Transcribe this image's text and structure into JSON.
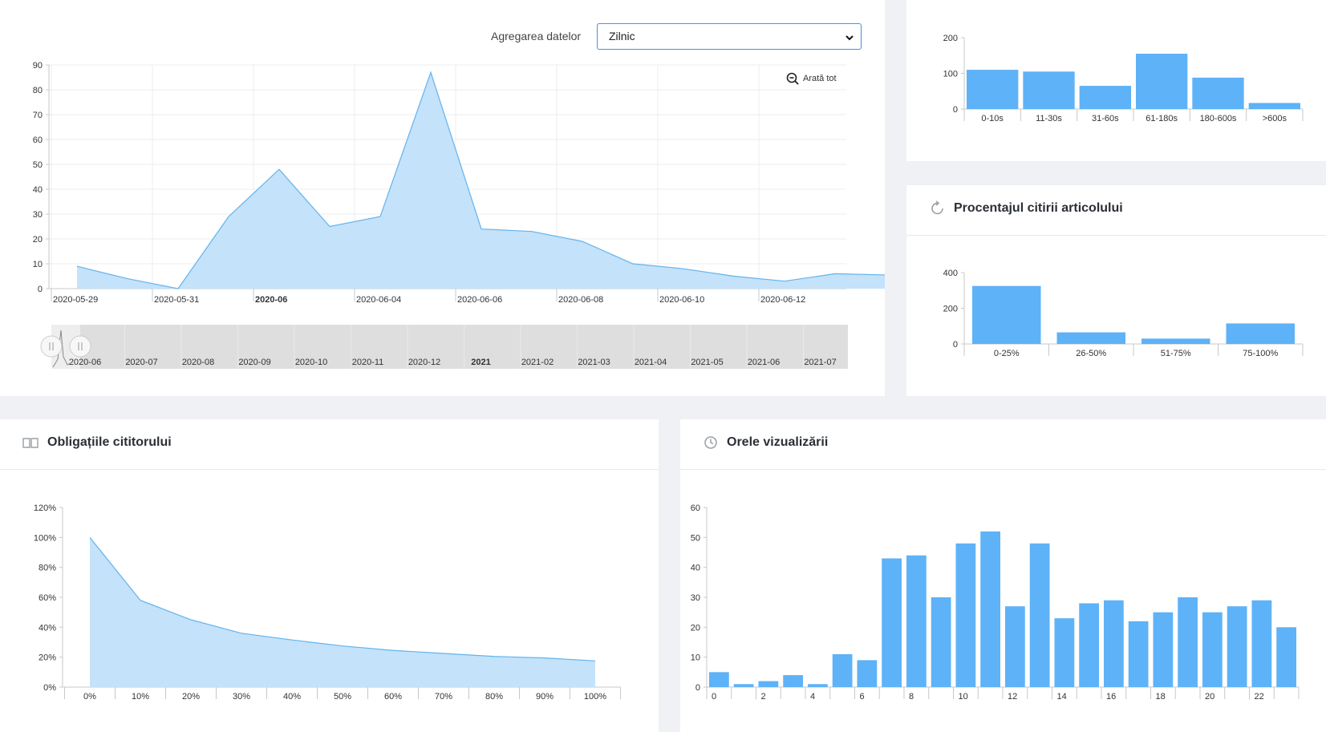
{
  "timeline": {
    "aggregation_label": "Agregarea datelor",
    "aggregation_value": "Zilnic",
    "show_all_label": "Arată tot",
    "chart_data": {
      "type": "area",
      "ylim": [
        0,
        90
      ],
      "y_ticks": [
        0,
        10,
        20,
        30,
        40,
        50,
        60,
        70,
        80,
        90
      ],
      "x_labels": [
        {
          "label": "2020-05-29",
          "bold": false
        },
        {
          "label": "2020-05-31",
          "bold": false
        },
        {
          "label": "2020-06",
          "bold": true
        },
        {
          "label": "2020-06-04",
          "bold": false
        },
        {
          "label": "2020-06-06",
          "bold": false
        },
        {
          "label": "2020-06-08",
          "bold": false
        },
        {
          "label": "2020-06-10",
          "bold": false
        },
        {
          "label": "2020-06-12",
          "bold": false
        }
      ],
      "x": [
        "2020-05-29",
        "2020-05-30",
        "2020-05-31",
        "2020-06-01",
        "2020-06-02",
        "2020-06-03",
        "2020-06-04",
        "2020-06-05",
        "2020-06-06",
        "2020-06-07",
        "2020-06-08",
        "2020-06-09",
        "2020-06-10",
        "2020-06-11",
        "2020-06-12",
        "2020-06-13",
        "2020-06-13T12"
      ],
      "values": [
        9,
        4,
        0,
        29,
        48,
        25,
        29,
        87,
        24,
        23,
        19,
        10,
        8,
        5,
        3,
        6,
        5.5
      ],
      "grid": true
    },
    "navigator": {
      "labels": [
        {
          "label": "2020-06",
          "bold": false
        },
        {
          "label": "2020-07",
          "bold": false
        },
        {
          "label": "2020-08",
          "bold": false
        },
        {
          "label": "2020-09",
          "bold": false
        },
        {
          "label": "2020-10",
          "bold": false
        },
        {
          "label": "2020-11",
          "bold": false
        },
        {
          "label": "2020-12",
          "bold": false
        },
        {
          "label": "2021",
          "bold": true
        },
        {
          "label": "2021-02",
          "bold": false
        },
        {
          "label": "2021-03",
          "bold": false
        },
        {
          "label": "2021-04",
          "bold": false
        },
        {
          "label": "2021-05",
          "bold": false
        },
        {
          "label": "2021-06",
          "bold": false
        },
        {
          "label": "2021-07",
          "bold": false
        }
      ]
    }
  },
  "duration": {
    "chart_data": {
      "type": "bar",
      "categories": [
        "0-10s",
        "11-30s",
        "31-60s",
        "61-180s",
        "180-600s",
        ">600s"
      ],
      "values": [
        110,
        105,
        65,
        155,
        88,
        17
      ],
      "ylim": [
        0,
        200
      ],
      "y_ticks": [
        0,
        100,
        200
      ]
    }
  },
  "percent": {
    "title": "Procentajul citirii articolului",
    "icon": "refresh-icon",
    "chart_data": {
      "type": "bar",
      "categories": [
        "0-25%",
        "26-50%",
        "51-75%",
        "75-100%"
      ],
      "values": [
        325,
        65,
        30,
        115
      ],
      "ylim": [
        0,
        400
      ],
      "y_ticks": [
        0,
        200,
        400
      ]
    }
  },
  "obligations": {
    "title": "Obligațiile cititorului",
    "icon": "book-icon",
    "chart_data": {
      "type": "area",
      "x": [
        "0%",
        "10%",
        "20%",
        "30%",
        "40%",
        "50%",
        "60%",
        "70%",
        "80%",
        "90%",
        "100%"
      ],
      "values": [
        100,
        58,
        45,
        36,
        31.5,
        27.5,
        24.5,
        22.5,
        20.5,
        19.5,
        17.5
      ],
      "ylim": [
        0,
        120
      ],
      "y_ticks": [
        "0%",
        "20%",
        "40%",
        "60%",
        "80%",
        "100%",
        "120%"
      ]
    }
  },
  "hours": {
    "title": "Orele vizualizării",
    "icon": "clock-icon",
    "chart_data": {
      "type": "bar",
      "categories": [
        "0",
        "1",
        "2",
        "3",
        "4",
        "5",
        "6",
        "7",
        "8",
        "9",
        "10",
        "11",
        "12",
        "13",
        "14",
        "15",
        "16",
        "17",
        "18",
        "19",
        "20",
        "21",
        "22",
        "23"
      ],
      "tick_labels": [
        "0",
        "",
        "2",
        "",
        "4",
        "",
        "6",
        "",
        "8",
        "",
        "10",
        "",
        "12",
        "",
        "14",
        "",
        "16",
        "",
        "18",
        "",
        "20",
        "",
        "22",
        ""
      ],
      "values": [
        5,
        1,
        2,
        4,
        1,
        11,
        9,
        43,
        44,
        30,
        48,
        52,
        27,
        48,
        23,
        28,
        29,
        22,
        25,
        30,
        25,
        27,
        29,
        20
      ],
      "ylim": [
        0,
        60
      ],
      "y_ticks": [
        0,
        10,
        20,
        30,
        40,
        50,
        60
      ]
    }
  },
  "colors": {
    "bar": "#5eb2f7",
    "area_fill": "#c4e2fa",
    "area_line": "#63b3ed",
    "grid": "#ececec",
    "axis": "#c8c8c8"
  }
}
